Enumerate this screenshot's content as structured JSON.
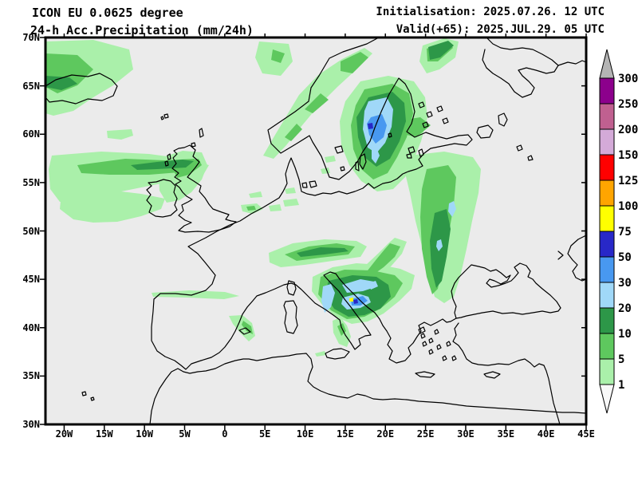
{
  "header": {
    "model": "ICON EU 0.0625 degree",
    "product": "24-h Acc.Precipitation (mm/24h)",
    "init_label": "Initialisation:",
    "init_value": "2025.07.26. 12 UTC",
    "valid_label": "Valid(+65):",
    "valid_value": "2025.JUL.29. 05 UTC"
  },
  "axes": {
    "lat_labels": [
      "70N",
      "65N",
      "60N",
      "55N",
      "50N",
      "45N",
      "40N",
      "35N",
      "30N"
    ],
    "lon_labels": [
      "20W",
      "15W",
      "10W",
      "5W",
      "0",
      "5E",
      "10E",
      "15E",
      "20E",
      "25E",
      "30E",
      "35E",
      "40E",
      "45E"
    ]
  },
  "legend": {
    "unit": "mm/24h",
    "boundary_labels": [
      "300",
      "250",
      "200",
      "150",
      "125",
      "100",
      "75",
      "50",
      "30",
      "20",
      "10",
      "5",
      "1"
    ],
    "band_color_keys_top_to_bottom": [
      "purple",
      "rose",
      "lilac",
      "red",
      "orange",
      "yellow",
      "db",
      "mb",
      "lb",
      "dg",
      "mg",
      "lg"
    ],
    "overflow_top_key": "overflow_gray",
    "overflow_bottom_key": "underflow_white"
  },
  "map": {
    "palette": {
      "map_bg": "#ebebeb",
      "lg": "#aaf0aa",
      "mg": "#5ec85e",
      "dg": "#2d9748",
      "lb": "#a0d8f8",
      "mb": "#4898f0",
      "db": "#2828c8",
      "yellow": "#ffff00",
      "orange": "#ffa500",
      "red": "#ff0000",
      "lilac": "#d4aad8",
      "rose": "#c06090",
      "purple": "#8c008c",
      "overflow_gray": "#b4b4b4",
      "underflow_white": "#f8f8f8",
      "coast": "#000000"
    }
  }
}
